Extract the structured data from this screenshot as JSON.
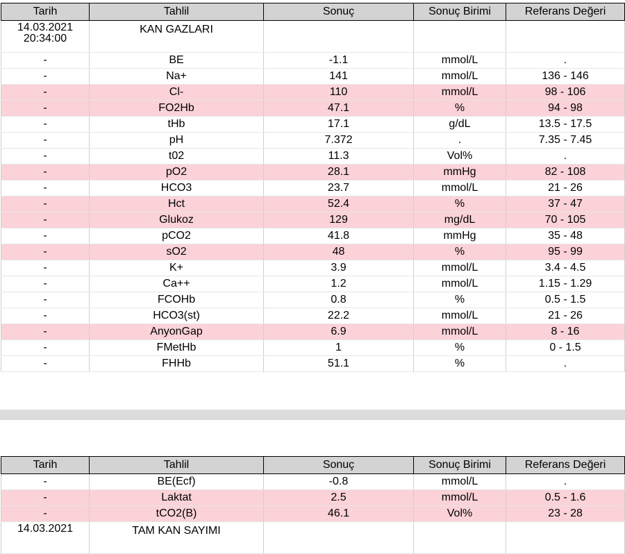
{
  "headers": [
    "Tarih",
    "Tahlil",
    "Sonuç",
    "Sonuç Birimi",
    "Referans Değeri"
  ],
  "group1": {
    "date": "14.03.2021",
    "time": "20:34:00",
    "name": "KAN GAZLARI",
    "rows": [
      {
        "tarih": "-",
        "tahlil": "BE",
        "sonuc": "-1.1",
        "birim": "mmol/L",
        "referans": ".",
        "highlight": false
      },
      {
        "tarih": "-",
        "tahlil": "Na+",
        "sonuc": "141",
        "birim": "mmol/L",
        "referans": "136 - 146",
        "highlight": false
      },
      {
        "tarih": "-",
        "tahlil": "Cl-",
        "sonuc": "110",
        "birim": "mmol/L",
        "referans": "98 - 106",
        "highlight": true
      },
      {
        "tarih": "-",
        "tahlil": "FO2Hb",
        "sonuc": "47.1",
        "birim": "%",
        "referans": "94 - 98",
        "highlight": true
      },
      {
        "tarih": "-",
        "tahlil": "tHb",
        "sonuc": "17.1",
        "birim": "g/dL",
        "referans": "13.5 - 17.5",
        "highlight": false
      },
      {
        "tarih": "-",
        "tahlil": "pH",
        "sonuc": "7.372",
        "birim": ".",
        "referans": "7.35 - 7.45",
        "highlight": false
      },
      {
        "tarih": "-",
        "tahlil": "t02",
        "sonuc": "11.3",
        "birim": "Vol%",
        "referans": ".",
        "highlight": false
      },
      {
        "tarih": "-",
        "tahlil": "pO2",
        "sonuc": "28.1",
        "birim": "mmHg",
        "referans": "82 - 108",
        "highlight": true
      },
      {
        "tarih": "-",
        "tahlil": "HCO3",
        "sonuc": "23.7",
        "birim": "mmol/L",
        "referans": "21 - 26",
        "highlight": false
      },
      {
        "tarih": "-",
        "tahlil": "Hct",
        "sonuc": "52.4",
        "birim": "%",
        "referans": "37 - 47",
        "highlight": true
      },
      {
        "tarih": "-",
        "tahlil": "Glukoz",
        "sonuc": "129",
        "birim": "mg/dL",
        "referans": "70 - 105",
        "highlight": true
      },
      {
        "tarih": "-",
        "tahlil": "pCO2",
        "sonuc": "41.8",
        "birim": "mmHg",
        "referans": "35 - 48",
        "highlight": false
      },
      {
        "tarih": "-",
        "tahlil": "sO2",
        "sonuc": "48",
        "birim": "%",
        "referans": "95 - 99",
        "highlight": true
      },
      {
        "tarih": "-",
        "tahlil": "K+",
        "sonuc": "3.9",
        "birim": "mmol/L",
        "referans": "3.4 - 4.5",
        "highlight": false
      },
      {
        "tarih": "-",
        "tahlil": "Ca++",
        "sonuc": "1.2",
        "birim": "mmol/L",
        "referans": "1.15 - 1.29",
        "highlight": false
      },
      {
        "tarih": "-",
        "tahlil": "FCOHb",
        "sonuc": "0.8",
        "birim": "%",
        "referans": "0.5 - 1.5",
        "highlight": false
      },
      {
        "tarih": "-",
        "tahlil": "HCO3(st)",
        "sonuc": "22.2",
        "birim": "mmol/L",
        "referans": "21 - 26",
        "highlight": false
      },
      {
        "tarih": "-",
        "tahlil": "AnyonGap",
        "sonuc": "6.9",
        "birim": "mmol/L",
        "referans": "8 - 16",
        "highlight": true
      },
      {
        "tarih": "-",
        "tahlil": "FMetHb",
        "sonuc": "1",
        "birim": "%",
        "referans": "0 - 1.5",
        "highlight": false
      },
      {
        "tarih": "-",
        "tahlil": "FHHb",
        "sonuc": "51.1",
        "birim": "%",
        "referans": ".",
        "highlight": false
      }
    ]
  },
  "group2": {
    "rows": [
      {
        "tarih": "-",
        "tahlil": "BE(Ecf)",
        "sonuc": "-0.8",
        "birim": "mmol/L",
        "referans": ".",
        "highlight": false
      },
      {
        "tarih": "-",
        "tahlil": "Laktat",
        "sonuc": "2.5",
        "birim": "mmol/L",
        "referans": "0.5 - 1.6",
        "highlight": true
      },
      {
        "tarih": "-",
        "tahlil": "tCO2(B)",
        "sonuc": "46.1",
        "birim": "Vol%",
        "referans": "23 - 28",
        "highlight": true
      }
    ],
    "next_date": "14.03.2021",
    "next_name": "TAM KAN SAYIMI"
  },
  "colors": {
    "highlight": "#fad2d8",
    "header": "#d3d3d3",
    "separator": "#dcdcdc"
  }
}
